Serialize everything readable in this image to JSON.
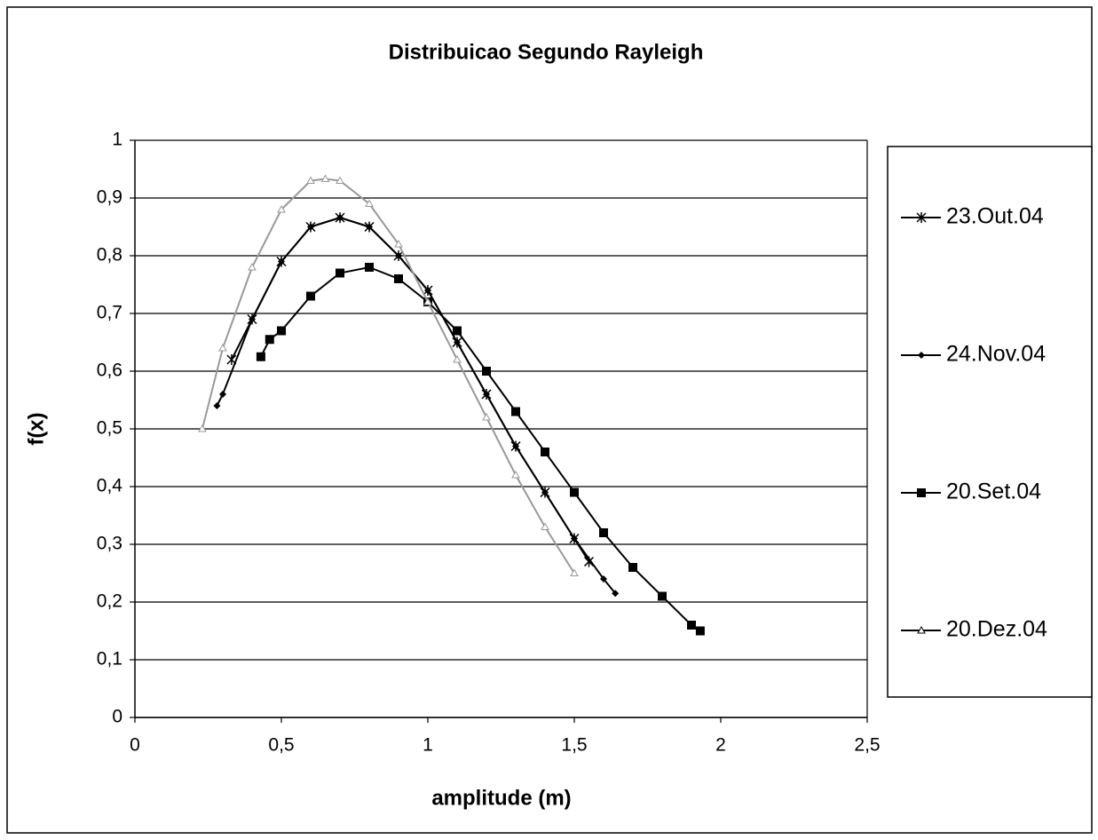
{
  "chart_data": {
    "type": "line",
    "title": "Distribuicao Segundo Rayleigh",
    "xlabel": "amplitude (m)",
    "ylabel": "f(x)",
    "xlim": [
      0,
      2.5
    ],
    "ylim": [
      0,
      1
    ],
    "xticks": [
      0,
      {
        "value": 0.5,
        "label": "0,5"
      },
      1,
      {
        "value": 1.5,
        "label": "1,5"
      },
      2,
      {
        "value": 2.5,
        "label": "2,5"
      }
    ],
    "yticks": [
      0,
      {
        "value": 0.1,
        "label": "0,1"
      },
      {
        "value": 0.2,
        "label": "0,2"
      },
      {
        "value": 0.3,
        "label": "0,3"
      },
      {
        "value": 0.4,
        "label": "0,4"
      },
      {
        "value": 0.5,
        "label": "0,5"
      },
      {
        "value": 0.6,
        "label": "0,6"
      },
      {
        "value": 0.7,
        "label": "0,7"
      },
      {
        "value": 0.8,
        "label": "0,8"
      },
      {
        "value": 0.9,
        "label": "0,9"
      },
      1
    ],
    "grid": true,
    "legend": "right",
    "series": [
      {
        "name": "23.Out.04",
        "color": "#000000",
        "marker": "asterisk",
        "x": [
          0.33,
          0.4,
          0.5,
          0.6,
          0.7,
          0.8,
          0.9,
          1.0,
          1.1,
          1.2,
          1.3,
          1.4,
          1.5,
          1.55
        ],
        "values": [
          0.62,
          0.69,
          0.79,
          0.85,
          0.866,
          0.85,
          0.8,
          0.74,
          0.65,
          0.56,
          0.47,
          0.39,
          0.31,
          0.27
        ]
      },
      {
        "name": "24.Nov.04",
        "color": "#000000",
        "marker": "diamond",
        "x": [
          0.28,
          0.3,
          0.4,
          0.5,
          0.6,
          0.7,
          0.8,
          0.9,
          1.0,
          1.1,
          1.2,
          1.3,
          1.4,
          1.5,
          1.6,
          1.64
        ],
        "values": [
          0.54,
          0.56,
          0.69,
          0.79,
          0.85,
          0.866,
          0.85,
          0.8,
          0.74,
          0.65,
          0.56,
          0.47,
          0.39,
          0.31,
          0.24,
          0.215
        ]
      },
      {
        "name": "20.Set.04",
        "color": "#000000",
        "marker": "square",
        "x": [
          0.43,
          0.46,
          0.5,
          0.6,
          0.7,
          0.8,
          0.9,
          1.0,
          1.1,
          1.2,
          1.3,
          1.4,
          1.5,
          1.6,
          1.7,
          1.8,
          1.9,
          1.93
        ],
        "values": [
          0.625,
          0.655,
          0.67,
          0.73,
          0.77,
          0.78,
          0.76,
          0.72,
          0.67,
          0.6,
          0.53,
          0.46,
          0.39,
          0.32,
          0.26,
          0.21,
          0.16,
          0.15
        ]
      },
      {
        "name": "20.Dez.04",
        "color": "#999999",
        "marker": "triangle",
        "x": [
          0.23,
          0.3,
          0.4,
          0.5,
          0.6,
          0.65,
          0.7,
          0.8,
          0.9,
          1.0,
          1.1,
          1.2,
          1.3,
          1.4,
          1.5
        ],
        "values": [
          0.5,
          0.64,
          0.78,
          0.88,
          0.93,
          0.933,
          0.93,
          0.89,
          0.82,
          0.72,
          0.62,
          0.52,
          0.42,
          0.33,
          0.25
        ]
      }
    ]
  }
}
